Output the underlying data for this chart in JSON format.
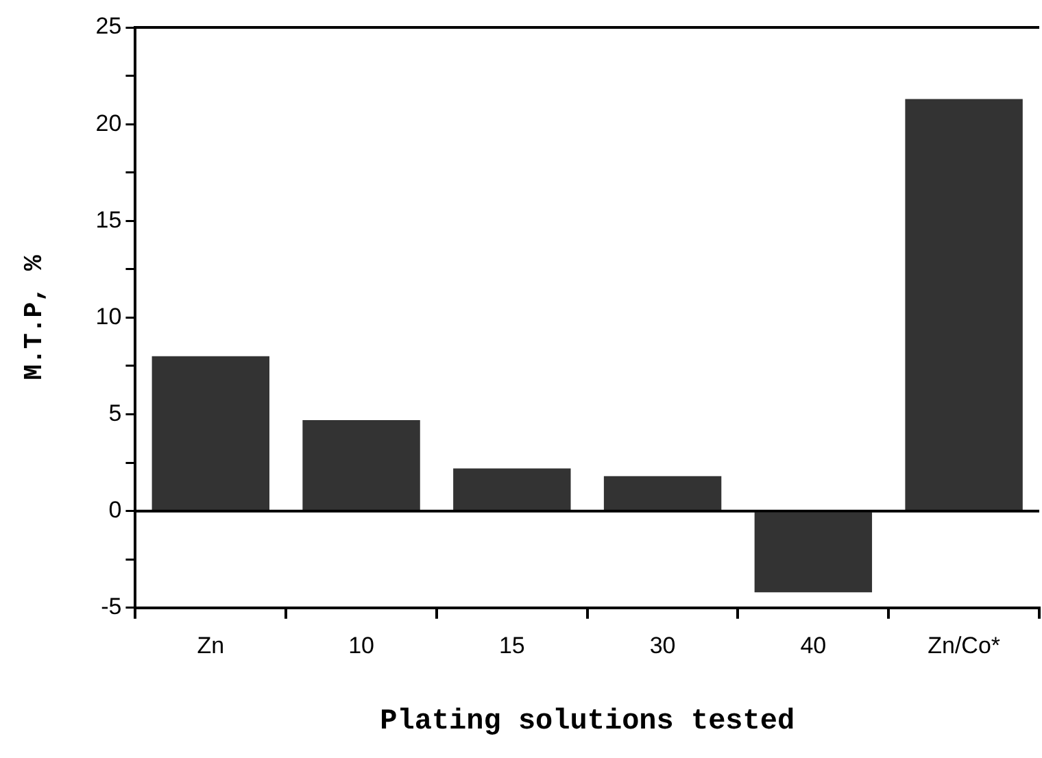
{
  "chart_data": {
    "type": "bar",
    "xlabel": "Plating solutions tested",
    "ylabel": "M.T.P, %",
    "categories": [
      "Zn",
      "10",
      "15",
      "30",
      "40",
      "Zn/Co*"
    ],
    "values": [
      8.0,
      4.7,
      2.2,
      1.8,
      -4.2,
      21.3
    ],
    "color": "#333333",
    "ylim": [
      -5,
      25
    ],
    "yticks": [
      -5,
      {
        "value": -2.5,
        "label": null
      },
      0,
      {
        "value": 2.5,
        "label": null
      },
      5,
      {
        "value": 7.5,
        "label": null
      },
      10,
      {
        "value": 12.5,
        "label": null
      },
      15,
      {
        "value": 17.5,
        "label": null
      },
      20,
      {
        "value": 22.5,
        "label": null
      },
      25
    ],
    "ref_lines": [
      {
        "axis": "y",
        "value": 0
      }
    ],
    "grid": false,
    "legend": false
  }
}
